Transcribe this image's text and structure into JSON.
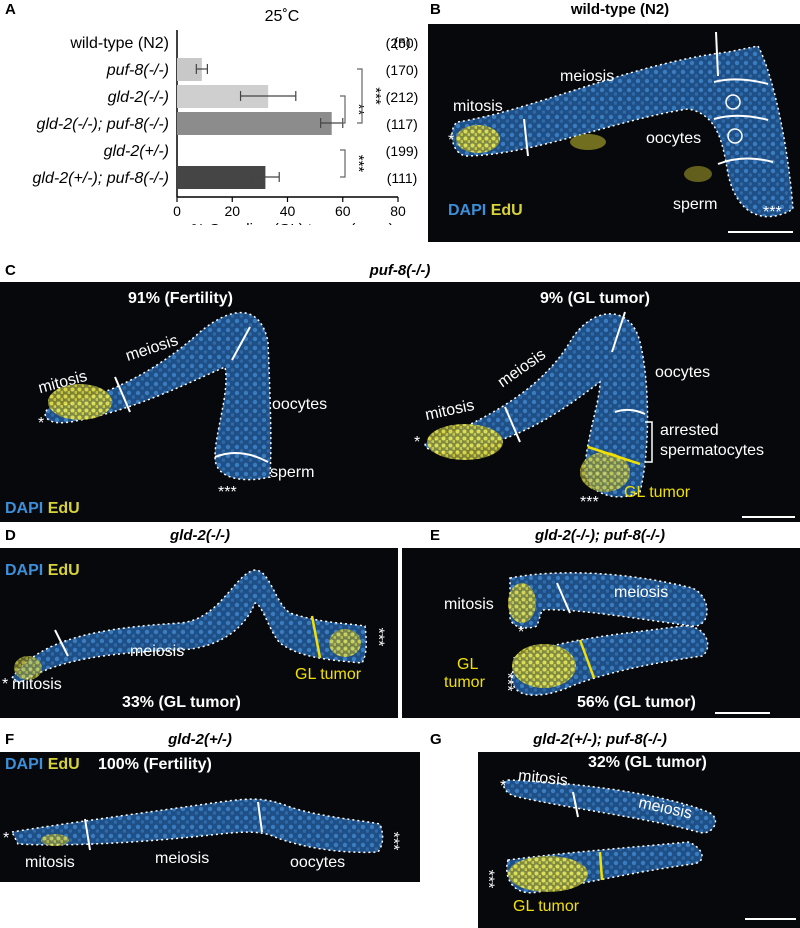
{
  "panel_letters": {
    "a": "A",
    "b": "B",
    "c": "C",
    "d": "D",
    "e": "E",
    "f": "F",
    "g": "G"
  },
  "chart_data": {
    "type": "bar",
    "title": "25˚C",
    "xlabel": "% Germline (GL) tumor (arms)",
    "xlim": [
      0,
      80
    ],
    "xticks": [
      "0",
      "20",
      "40",
      "60",
      "80"
    ],
    "n_header": "(n)",
    "categories": [
      "wild-type (N2)",
      "puf-8(-/-)",
      "gld-2(-/-)",
      "gld-2(-/-); puf-8(-/-)",
      "gld-2(+/-)",
      "gld-2(+/-); puf-8(-/-)"
    ],
    "values": [
      0,
      9,
      33,
      56,
      0,
      32
    ],
    "errors": [
      0,
      2,
      10,
      4,
      0,
      5
    ],
    "n": [
      "(250)",
      "(170)",
      "(212)",
      "(117)",
      "(199)",
      "(111)"
    ],
    "bar_colors": [
      "#d9d9d9",
      "#c8c8c8",
      "#cfcfcf",
      "#8c8c8c",
      "#bdbdbd",
      "#454545"
    ],
    "significance": [
      {
        "between": [
          2,
          3
        ],
        "label": "**"
      },
      {
        "between": [
          1,
          3
        ],
        "label": "***"
      },
      {
        "between": [
          4,
          5
        ],
        "label": "***"
      }
    ]
  },
  "legend": {
    "dapi": "DAPI",
    "edu": "EdU"
  },
  "panels": {
    "b": {
      "title": "wild-type (N2)",
      "mitosis": "mitosis",
      "meiosis": "meiosis",
      "oocytes": "oocytes",
      "sperm": "sperm",
      "distal": "*",
      "proximal": "***"
    },
    "c": {
      "title": "puf-8(-/-)",
      "left_stat": "91% (Fertility)",
      "right_stat": "9% (GL tumor)",
      "l_mitosis": "mitosis",
      "l_meiosis": "meiosis",
      "l_oocytes": "oocytes",
      "l_sperm": "sperm",
      "r_mitosis": "mitosis",
      "r_meiosis": "meiosis",
      "r_oocytes": "oocytes",
      "arrested1": "arrested",
      "arrested2": "spermatocytes",
      "gl_tumor": "GL tumor",
      "distal": "*",
      "proximal": "***"
    },
    "d": {
      "title": "gld-2(-/-)",
      "mitosis": "mitosis",
      "meiosis": "meiosis",
      "gl_tumor": "GL tumor",
      "stat": "33% (GL tumor)",
      "distal": "*",
      "proximal": "***"
    },
    "e": {
      "title": "gld-2(-/-); puf-8(-/-)",
      "mitosis": "mitosis",
      "meiosis": "meiosis",
      "gl1": "GL",
      "gl2": "tumor",
      "stat": "56% (GL tumor)",
      "distal": "*",
      "proximal": "***"
    },
    "f": {
      "title": "gld-2(+/-)",
      "stat": "100% (Fertility)",
      "mitosis": "mitosis",
      "meiosis": "meiosis",
      "oocytes": "oocytes",
      "distal": "*",
      "proximal": "***"
    },
    "g": {
      "title": "gld-2(+/-); puf-8(-/-)",
      "stat": "32% (GL tumor)",
      "mitosis": "mitosis",
      "meiosis": "meiosis",
      "gl_tumor": "GL tumor",
      "distal": "*",
      "proximal": "***"
    }
  }
}
